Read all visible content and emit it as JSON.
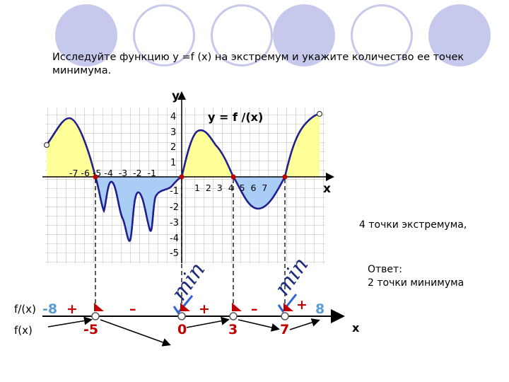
{
  "task_text": "Исследуйте функцию y =f (x) на экстремум и укажите количество ее точек минимума.",
  "graph": {
    "y_axis_label": "y",
    "x_axis_label": "x",
    "function_label": "y = f /(x)",
    "y_ticks_positive": [
      "4",
      "3",
      "2",
      "1"
    ],
    "y_ticks_negative": [
      "-1",
      "-2",
      "-3",
      "-4",
      "-5"
    ],
    "x_ticks_negative": "-7 -6 -5 -4  -3  -2  -1",
    "x_ticks_positive": "1  2  3  4  5  6  7"
  },
  "sign_chart": {
    "fprime_label": "f/(x)",
    "f_label": "f(x)",
    "left_bound": "-8",
    "right_bound": "8",
    "critical_points": [
      "-5",
      "0",
      "3",
      "7"
    ],
    "signs": [
      "+",
      "–",
      "+",
      "–",
      "+"
    ],
    "min_labels": [
      "min",
      "min"
    ],
    "axis_label": "x"
  },
  "annotation_extrema": "4 точки экстремума,",
  "answer_line1": "Ответ:",
  "answer_line2": "2 точки минимума",
  "colors": {
    "curve": "#1f1f8f",
    "positive_fill": "#ffff99",
    "negative_fill": "#a9cdf5",
    "grid": "#9a9a9a",
    "accent_blue": "#5b9bd5",
    "marker_red": "#c00000",
    "circle_decor": "#c7c9ec"
  }
}
